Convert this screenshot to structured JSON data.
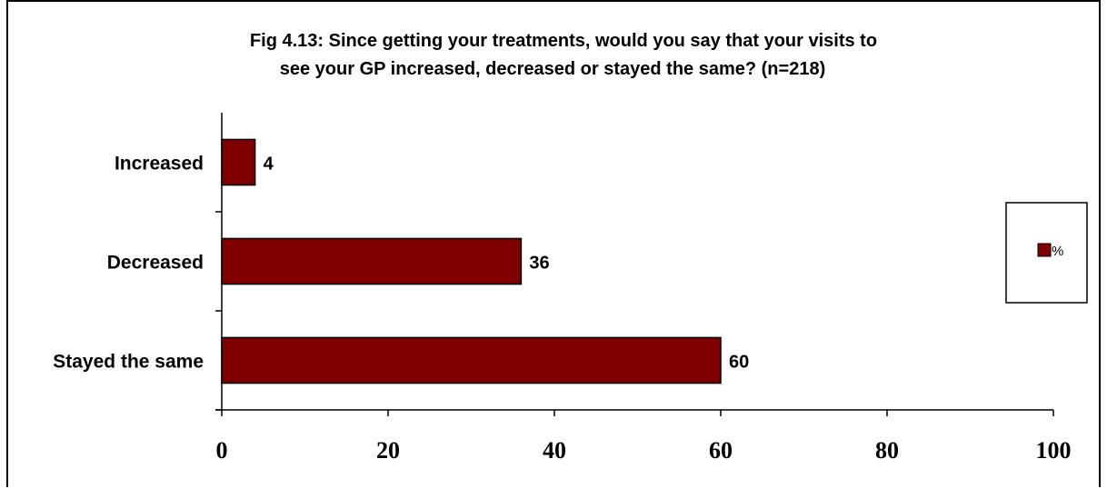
{
  "chart_data": {
    "type": "bar",
    "orientation": "horizontal",
    "title": "Fig 4.13: Since getting your treatments, would you say that your visits to see your GP increased, decreased or stayed the same? (n=218)",
    "title_lines": [
      "Fig 4.13: Since getting your treatments, would you say that your visits to",
      "see your GP increased, decreased or stayed the same? (n=218)"
    ],
    "categories": [
      "Increased",
      "Decreased",
      "Stayed the same"
    ],
    "series": [
      {
        "name": "%",
        "values": [
          4,
          36,
          60
        ],
        "color": "#800000"
      }
    ],
    "data_labels": [
      "4",
      "36",
      "60"
    ],
    "xlim": [
      0,
      100
    ],
    "x_ticks": [
      0,
      20,
      40,
      60,
      80,
      100
    ],
    "x_tick_labels": [
      "0",
      "20",
      "40",
      "60",
      "80",
      "100"
    ],
    "xlabel": "",
    "ylabel": "",
    "grid": false,
    "legend_position": "right",
    "legend": {
      "label": "%"
    }
  }
}
